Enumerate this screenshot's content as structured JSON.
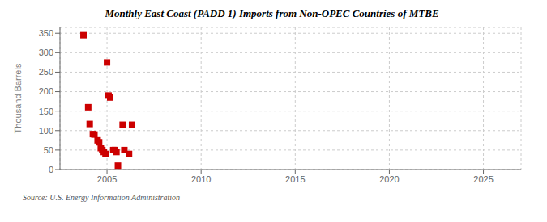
{
  "chart_data": {
    "type": "scatter",
    "title": "Monthly East Coast (PADD 1) Imports from Non-OPEC Countries of MTBE",
    "ylabel": "Thousand Barrels",
    "annotations": [
      "Source: U.S. Energy Information Administration"
    ],
    "color": "#cc0000",
    "marker": "square",
    "grid": true,
    "xlim": [
      2002.5,
      2027
    ],
    "ylim": [
      0,
      365
    ],
    "xticks": [
      2005,
      2010,
      2015,
      2020,
      2025
    ],
    "yticks": [
      0,
      50,
      100,
      150,
      200,
      250,
      300,
      350
    ],
    "x": [
      2003.75,
      2004.0,
      2004.08,
      2004.25,
      2004.33,
      2004.5,
      2004.58,
      2004.67,
      2004.75,
      2004.83,
      2004.92,
      2005.0,
      2005.08,
      2005.17,
      2005.33,
      2005.42,
      2005.5,
      2005.58,
      2005.83,
      2005.92,
      2006.17,
      2006.33
    ],
    "values": [
      345,
      160,
      117,
      91,
      90,
      75,
      70,
      55,
      50,
      45,
      40,
      275,
      190,
      185,
      50,
      50,
      45,
      10,
      115,
      50,
      40,
      115
    ]
  }
}
